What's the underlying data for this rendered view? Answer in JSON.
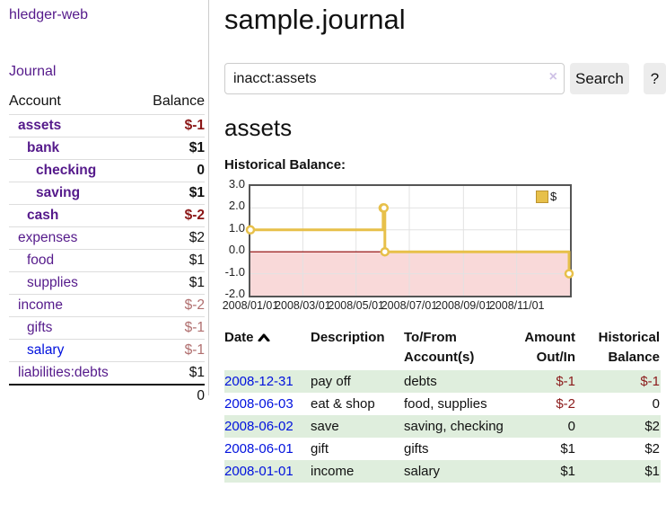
{
  "app": {
    "brand": "hledger-web"
  },
  "sidebar": {
    "nav": {
      "journal_label": "Journal"
    },
    "accounts_table": {
      "headers": {
        "account": "Account",
        "balance": "Balance"
      },
      "rows": [
        {
          "name": "assets",
          "depth": 1,
          "bold": true,
          "link_color": "purple",
          "balance": "$-1",
          "balance_class": "neg-strong"
        },
        {
          "name": "bank",
          "depth": 2,
          "bold": true,
          "link_color": "purple",
          "balance": "$1",
          "balance_class": ""
        },
        {
          "name": "checking",
          "depth": 3,
          "bold": true,
          "link_color": "purple",
          "balance": "0",
          "balance_class": ""
        },
        {
          "name": "saving",
          "depth": 3,
          "bold": true,
          "link_color": "purple",
          "balance": "$1",
          "balance_class": ""
        },
        {
          "name": "cash",
          "depth": 2,
          "bold": true,
          "link_color": "purple",
          "balance": "$-2",
          "balance_class": "neg-strong"
        },
        {
          "name": "expenses",
          "depth": 1,
          "bold": false,
          "link_color": "purple",
          "balance": "$2",
          "balance_class": ""
        },
        {
          "name": "food",
          "depth": 2,
          "bold": false,
          "link_color": "purple",
          "balance": "$1",
          "balance_class": ""
        },
        {
          "name": "supplies",
          "depth": 2,
          "bold": false,
          "link_color": "purple",
          "balance": "$1",
          "balance_class": ""
        },
        {
          "name": "income",
          "depth": 1,
          "bold": false,
          "link_color": "purple",
          "balance": "$-2",
          "balance_class": "neg-muted"
        },
        {
          "name": "gifts",
          "depth": 2,
          "bold": false,
          "link_color": "purple",
          "balance": "$-1",
          "balance_class": "neg-muted"
        },
        {
          "name": "salary",
          "depth": 2,
          "bold": false,
          "link_color": "blue",
          "balance": "$-1",
          "balance_class": "neg-muted"
        },
        {
          "name": "liabilities:debts",
          "depth": 1,
          "bold": false,
          "link_color": "purple",
          "balance": "$1",
          "balance_class": ""
        }
      ],
      "total": "0"
    }
  },
  "main": {
    "title": "sample.journal",
    "search": {
      "value": "inacct:assets",
      "clear_icon": "×",
      "button_label": "Search",
      "help_label": "?"
    },
    "account_heading": "assets",
    "chart_label": "Historical Balance:"
  },
  "chart_data": {
    "type": "line",
    "step": true,
    "title": "Historical Balance:",
    "series": [
      {
        "name": "$",
        "color": "#e7c04a",
        "points": [
          [
            "2008-01-01",
            1
          ],
          [
            "2008-06-01",
            2
          ],
          [
            "2008-06-02",
            2
          ],
          [
            "2008-06-03",
            0
          ],
          [
            "2008-12-31",
            -1
          ]
        ]
      }
    ],
    "xlim": [
      "2008-01-01",
      "2009-01-01"
    ],
    "ylim": [
      -2,
      3
    ],
    "yticks": [
      {
        "v": 3,
        "label": "3.0"
      },
      {
        "v": 2,
        "label": "2.0"
      },
      {
        "v": 1,
        "label": "1.0"
      },
      {
        "v": 0,
        "label": "0.0"
      },
      {
        "v": -1,
        "label": "-1.0"
      },
      {
        "v": -2,
        "label": "-2.0"
      }
    ],
    "xticks": [
      {
        "date": "2008-01-01",
        "label": "2008/01/01"
      },
      {
        "date": "2008-03-01",
        "label": "2008/03/01"
      },
      {
        "date": "2008-05-01",
        "label": "2008/05/01"
      },
      {
        "date": "2008-07-01",
        "label": "2008/07/01"
      },
      {
        "date": "2008-09-01",
        "label": "2008/09/01"
      },
      {
        "date": "2008-11-01",
        "label": "2008/11/01"
      }
    ],
    "grid": true,
    "legend": {
      "label": "$",
      "position": "top-right"
    },
    "negative_region_color": "#f9d9d9",
    "zero_line_color": "#8b0000",
    "frame_color": "#555555"
  },
  "register_table": {
    "headers": {
      "date": "Date",
      "description": "Description",
      "accounts": "To/From Account(s)",
      "amount": "Amount Out/In",
      "balance": "Historical Balance"
    },
    "sort": {
      "column": "date",
      "direction": "asc-arrow-up"
    },
    "rows": [
      {
        "date": "2008-12-31",
        "description": "pay off",
        "accounts": "debts",
        "amount": "$-1",
        "amount_neg": true,
        "balance": "$-1",
        "balance_neg": true,
        "green": true
      },
      {
        "date": "2008-06-03",
        "description": "eat & shop",
        "accounts": "food, supplies",
        "amount": "$-2",
        "amount_neg": true,
        "balance": "0",
        "balance_neg": false,
        "green": false
      },
      {
        "date": "2008-06-02",
        "description": "save",
        "accounts": "saving, checking",
        "amount": "0",
        "amount_neg": false,
        "balance": "$2",
        "balance_neg": false,
        "green": true
      },
      {
        "date": "2008-06-01",
        "description": "gift",
        "accounts": "gifts",
        "amount": "$1",
        "amount_neg": false,
        "balance": "$2",
        "balance_neg": false,
        "green": false
      },
      {
        "date": "2008-01-01",
        "description": "income",
        "accounts": "salary",
        "amount": "$1",
        "amount_neg": false,
        "balance": "$1",
        "balance_neg": false,
        "green": true
      }
    ]
  }
}
